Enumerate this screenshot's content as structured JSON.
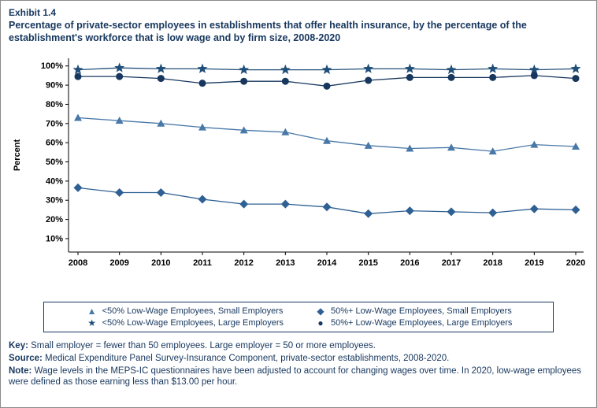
{
  "header": {
    "exhibit": "Exhibit 1.4",
    "title": "Percentage of private-sector employees in establishments that offer health insurance, by the percentage of the establishment's workforce that is low wage and by firm size,  2008-2020"
  },
  "colors": {
    "text": "#17375E",
    "axis": "#000000"
  },
  "chart_data": {
    "type": "line",
    "title": "Percentage of private-sector employees in establishments that offer health insurance, by the percentage of the establishment's workforce that is low wage and by firm size, 2008-2020",
    "xlabel": "",
    "ylabel": "Percent",
    "x": [
      2008,
      2009,
      2010,
      2011,
      2012,
      2013,
      2014,
      2015,
      2016,
      2017,
      2018,
      2019,
      2020
    ],
    "yticks": [
      10,
      20,
      30,
      40,
      50,
      60,
      70,
      80,
      90,
      100
    ],
    "ylim": [
      3,
      104
    ],
    "grid": false,
    "legend_position": "bottom",
    "series": [
      {
        "name": "<50% Low-Wage Employees, Small Employers",
        "marker": "triangle",
        "glyph": "▲",
        "color": "#4878A8",
        "values": [
          73,
          71.5,
          70,
          68,
          66.5,
          65.5,
          61,
          58.5,
          57,
          57.5,
          55.5,
          59,
          58
        ]
      },
      {
        "name": "50%+ Low-Wage Employees, Small Employers",
        "marker": "diamond",
        "glyph": "◆",
        "color": "#2E6093",
        "values": [
          36.5,
          34,
          34,
          30.5,
          28,
          28,
          26.5,
          23,
          24.5,
          24,
          23.5,
          25.5,
          25
        ]
      },
      {
        "name": "<50% Low-Wage Employees, Large Employers",
        "marker": "star",
        "glyph": "★",
        "color": "#1F4E79",
        "values": [
          98,
          99,
          98.5,
          98.5,
          98,
          98,
          98,
          98.5,
          98.5,
          98,
          98.5,
          98,
          98.5
        ]
      },
      {
        "name": "50%+ Low-Wage Employees, Large Employers",
        "marker": "circle",
        "glyph": "●",
        "color": "#17375E",
        "values": [
          94.5,
          94.5,
          93.5,
          91,
          92,
          92,
          89.5,
          92.5,
          94,
          94,
          94,
          95,
          93.5
        ]
      }
    ]
  },
  "footer": {
    "key_label": "Key:",
    "key_text": "Small employer = fewer than 50 employees. Large employer = 50 or more employees.",
    "source_label": "Source:",
    "source_text": "Medical Expenditure Panel Survey-Insurance Component, private-sector establishments, 2008-2020.",
    "note_label": "Note:",
    "note_text": "Wage levels in the MEPS-IC questionnaires have been adjusted to account for changing wages over time. In 2020, low-wage employees were defined as those earning less than $13.00 per hour."
  }
}
